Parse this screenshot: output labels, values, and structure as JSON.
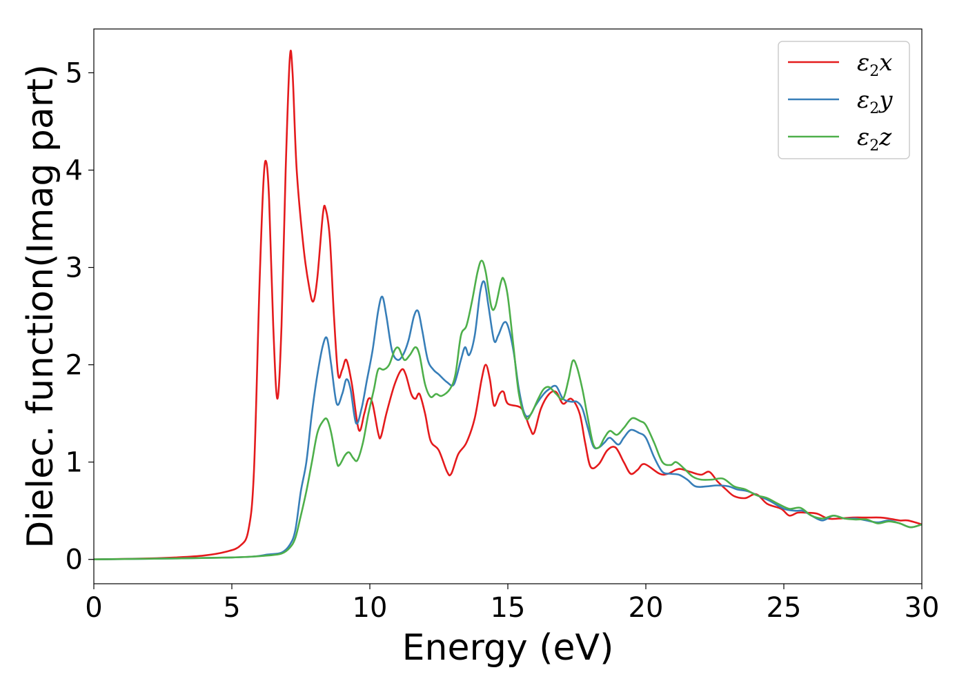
{
  "chart_data": {
    "type": "line",
    "xlabel": "Energy (eV)",
    "ylabel": "Dielec. function(Imag part)",
    "xlim": [
      0,
      30
    ],
    "ylim": [
      -0.25,
      5.45
    ],
    "xticks": [
      0,
      5,
      10,
      15,
      20,
      25,
      30
    ],
    "yticks": [
      0,
      1,
      2,
      3,
      4,
      5
    ],
    "grid": false,
    "legend_position": "top-right",
    "series": [
      {
        "name": "ε2x",
        "base": "ε",
        "sub": "2",
        "suffix": "x",
        "color": "#e41a1c",
        "points": [
          [
            0,
            0
          ],
          [
            2,
            0.01
          ],
          [
            3,
            0.02
          ],
          [
            4,
            0.04
          ],
          [
            4.8,
            0.08
          ],
          [
            5.3,
            0.14
          ],
          [
            5.6,
            0.3
          ],
          [
            5.8,
            0.9
          ],
          [
            6.0,
            2.8
          ],
          [
            6.15,
            3.9
          ],
          [
            6.25,
            4.08
          ],
          [
            6.35,
            3.7
          ],
          [
            6.5,
            2.4
          ],
          [
            6.65,
            1.65
          ],
          [
            6.8,
            2.4
          ],
          [
            6.95,
            4.0
          ],
          [
            7.1,
            5.15
          ],
          [
            7.2,
            5.0
          ],
          [
            7.35,
            4.0
          ],
          [
            7.6,
            3.2
          ],
          [
            7.8,
            2.8
          ],
          [
            7.95,
            2.65
          ],
          [
            8.1,
            2.9
          ],
          [
            8.3,
            3.55
          ],
          [
            8.4,
            3.6
          ],
          [
            8.55,
            3.3
          ],
          [
            8.7,
            2.5
          ],
          [
            8.85,
            1.9
          ],
          [
            9.0,
            1.95
          ],
          [
            9.15,
            2.05
          ],
          [
            9.35,
            1.8
          ],
          [
            9.6,
            1.33
          ],
          [
            9.8,
            1.5
          ],
          [
            9.95,
            1.65
          ],
          [
            10.1,
            1.6
          ],
          [
            10.3,
            1.3
          ],
          [
            10.4,
            1.26
          ],
          [
            10.6,
            1.5
          ],
          [
            10.9,
            1.8
          ],
          [
            11.15,
            1.95
          ],
          [
            11.3,
            1.9
          ],
          [
            11.5,
            1.7
          ],
          [
            11.65,
            1.65
          ],
          [
            11.8,
            1.7
          ],
          [
            12.0,
            1.5
          ],
          [
            12.2,
            1.22
          ],
          [
            12.5,
            1.12
          ],
          [
            12.8,
            0.9
          ],
          [
            12.95,
            0.88
          ],
          [
            13.2,
            1.08
          ],
          [
            13.5,
            1.2
          ],
          [
            13.8,
            1.45
          ],
          [
            14.05,
            1.85
          ],
          [
            14.2,
            2.0
          ],
          [
            14.35,
            1.85
          ],
          [
            14.5,
            1.58
          ],
          [
            14.7,
            1.7
          ],
          [
            14.85,
            1.72
          ],
          [
            15.0,
            1.6
          ],
          [
            15.5,
            1.55
          ],
          [
            15.8,
            1.35
          ],
          [
            15.95,
            1.3
          ],
          [
            16.2,
            1.55
          ],
          [
            16.5,
            1.7
          ],
          [
            16.75,
            1.72
          ],
          [
            17.0,
            1.6
          ],
          [
            17.3,
            1.65
          ],
          [
            17.6,
            1.5
          ],
          [
            17.8,
            1.2
          ],
          [
            18.0,
            0.95
          ],
          [
            18.3,
            0.98
          ],
          [
            18.6,
            1.12
          ],
          [
            18.9,
            1.15
          ],
          [
            19.2,
            1.0
          ],
          [
            19.45,
            0.88
          ],
          [
            19.7,
            0.92
          ],
          [
            19.95,
            0.98
          ],
          [
            20.5,
            0.88
          ],
          [
            20.8,
            0.88
          ],
          [
            21.2,
            0.93
          ],
          [
            21.6,
            0.9
          ],
          [
            22.0,
            0.87
          ],
          [
            22.3,
            0.9
          ],
          [
            22.6,
            0.8
          ],
          [
            22.9,
            0.72
          ],
          [
            23.2,
            0.65
          ],
          [
            23.6,
            0.63
          ],
          [
            24.0,
            0.67
          ],
          [
            24.4,
            0.57
          ],
          [
            24.9,
            0.52
          ],
          [
            25.2,
            0.45
          ],
          [
            25.5,
            0.48
          ],
          [
            25.8,
            0.48
          ],
          [
            26.2,
            0.47
          ],
          [
            26.6,
            0.42
          ],
          [
            27.0,
            0.42
          ],
          [
            27.5,
            0.43
          ],
          [
            28.0,
            0.43
          ],
          [
            28.5,
            0.43
          ],
          [
            28.8,
            0.42
          ],
          [
            29.2,
            0.4
          ],
          [
            29.5,
            0.4
          ],
          [
            30,
            0.36
          ]
        ]
      },
      {
        "name": "ε2y",
        "base": "ε",
        "sub": "2",
        "suffix": "y",
        "color": "#377eb8",
        "points": [
          [
            0,
            0
          ],
          [
            3,
            0.01
          ],
          [
            5,
            0.02
          ],
          [
            5.8,
            0.03
          ],
          [
            6.3,
            0.05
          ],
          [
            6.8,
            0.07
          ],
          [
            7.1,
            0.15
          ],
          [
            7.3,
            0.3
          ],
          [
            7.5,
            0.7
          ],
          [
            7.7,
            1.0
          ],
          [
            7.9,
            1.5
          ],
          [
            8.1,
            1.9
          ],
          [
            8.3,
            2.2
          ],
          [
            8.45,
            2.27
          ],
          [
            8.6,
            2.0
          ],
          [
            8.8,
            1.6
          ],
          [
            9.0,
            1.7
          ],
          [
            9.15,
            1.85
          ],
          [
            9.3,
            1.75
          ],
          [
            9.5,
            1.4
          ],
          [
            9.7,
            1.55
          ],
          [
            9.9,
            1.85
          ],
          [
            10.1,
            2.15
          ],
          [
            10.3,
            2.55
          ],
          [
            10.45,
            2.7
          ],
          [
            10.6,
            2.5
          ],
          [
            10.8,
            2.15
          ],
          [
            11.0,
            2.05
          ],
          [
            11.2,
            2.1
          ],
          [
            11.4,
            2.25
          ],
          [
            11.6,
            2.5
          ],
          [
            11.75,
            2.55
          ],
          [
            11.9,
            2.35
          ],
          [
            12.1,
            2.05
          ],
          [
            12.3,
            1.95
          ],
          [
            12.5,
            1.9
          ],
          [
            12.8,
            1.82
          ],
          [
            13.05,
            1.8
          ],
          [
            13.3,
            2.05
          ],
          [
            13.45,
            2.18
          ],
          [
            13.6,
            2.1
          ],
          [
            13.8,
            2.3
          ],
          [
            14.0,
            2.75
          ],
          [
            14.15,
            2.85
          ],
          [
            14.3,
            2.6
          ],
          [
            14.5,
            2.25
          ],
          [
            14.65,
            2.3
          ],
          [
            14.85,
            2.43
          ],
          [
            15.0,
            2.4
          ],
          [
            15.2,
            2.15
          ],
          [
            15.4,
            1.75
          ],
          [
            15.6,
            1.5
          ],
          [
            15.8,
            1.48
          ],
          [
            16.0,
            1.58
          ],
          [
            16.3,
            1.7
          ],
          [
            16.5,
            1.75
          ],
          [
            16.75,
            1.78
          ],
          [
            17.0,
            1.65
          ],
          [
            17.3,
            1.62
          ],
          [
            17.5,
            1.62
          ],
          [
            17.7,
            1.55
          ],
          [
            17.9,
            1.35
          ],
          [
            18.1,
            1.16
          ],
          [
            18.3,
            1.15
          ],
          [
            18.5,
            1.2
          ],
          [
            18.7,
            1.25
          ],
          [
            19.0,
            1.18
          ],
          [
            19.2,
            1.25
          ],
          [
            19.45,
            1.33
          ],
          [
            19.75,
            1.3
          ],
          [
            20.0,
            1.25
          ],
          [
            20.3,
            1.05
          ],
          [
            20.6,
            0.9
          ],
          [
            20.9,
            0.88
          ],
          [
            21.2,
            0.87
          ],
          [
            21.5,
            0.82
          ],
          [
            21.8,
            0.75
          ],
          [
            22.2,
            0.75
          ],
          [
            22.6,
            0.76
          ],
          [
            23.0,
            0.75
          ],
          [
            23.3,
            0.72
          ],
          [
            23.7,
            0.7
          ],
          [
            24.1,
            0.65
          ],
          [
            24.5,
            0.6
          ],
          [
            25.0,
            0.52
          ],
          [
            25.4,
            0.5
          ],
          [
            25.7,
            0.5
          ],
          [
            26.0,
            0.45
          ],
          [
            26.4,
            0.4
          ],
          [
            26.8,
            0.45
          ],
          [
            27.2,
            0.42
          ],
          [
            27.6,
            0.42
          ],
          [
            28.0,
            0.4
          ],
          [
            28.4,
            0.38
          ],
          [
            28.8,
            0.4
          ],
          [
            29.2,
            0.37
          ],
          [
            29.6,
            0.33
          ],
          [
            30,
            0.36
          ]
        ]
      },
      {
        "name": "ε2z",
        "base": "ε",
        "sub": "2",
        "suffix": "z",
        "color": "#4daf4a",
        "points": [
          [
            0,
            0
          ],
          [
            3,
            0.01
          ],
          [
            5,
            0.02
          ],
          [
            5.8,
            0.03
          ],
          [
            6.3,
            0.04
          ],
          [
            6.8,
            0.06
          ],
          [
            7.1,
            0.12
          ],
          [
            7.3,
            0.22
          ],
          [
            7.5,
            0.45
          ],
          [
            7.7,
            0.7
          ],
          [
            7.9,
            1.0
          ],
          [
            8.1,
            1.3
          ],
          [
            8.3,
            1.42
          ],
          [
            8.45,
            1.44
          ],
          [
            8.6,
            1.3
          ],
          [
            8.8,
            1.0
          ],
          [
            8.9,
            0.97
          ],
          [
            9.1,
            1.07
          ],
          [
            9.25,
            1.1
          ],
          [
            9.4,
            1.04
          ],
          [
            9.55,
            1.02
          ],
          [
            9.75,
            1.2
          ],
          [
            9.95,
            1.5
          ],
          [
            10.15,
            1.75
          ],
          [
            10.3,
            1.95
          ],
          [
            10.5,
            1.95
          ],
          [
            10.7,
            2.0
          ],
          [
            10.9,
            2.15
          ],
          [
            11.05,
            2.17
          ],
          [
            11.25,
            2.05
          ],
          [
            11.45,
            2.1
          ],
          [
            11.65,
            2.18
          ],
          [
            11.8,
            2.1
          ],
          [
            12.0,
            1.8
          ],
          [
            12.2,
            1.67
          ],
          [
            12.4,
            1.7
          ],
          [
            12.6,
            1.68
          ],
          [
            12.9,
            1.75
          ],
          [
            13.1,
            1.9
          ],
          [
            13.3,
            2.3
          ],
          [
            13.5,
            2.4
          ],
          [
            13.7,
            2.65
          ],
          [
            13.9,
            2.95
          ],
          [
            14.05,
            3.07
          ],
          [
            14.2,
            2.95
          ],
          [
            14.4,
            2.6
          ],
          [
            14.55,
            2.6
          ],
          [
            14.75,
            2.85
          ],
          [
            14.85,
            2.88
          ],
          [
            15.0,
            2.7
          ],
          [
            15.2,
            2.2
          ],
          [
            15.4,
            1.7
          ],
          [
            15.65,
            1.45
          ],
          [
            15.85,
            1.5
          ],
          [
            16.1,
            1.65
          ],
          [
            16.3,
            1.75
          ],
          [
            16.5,
            1.77
          ],
          [
            16.75,
            1.7
          ],
          [
            17.0,
            1.65
          ],
          [
            17.2,
            1.85
          ],
          [
            17.35,
            2.04
          ],
          [
            17.5,
            1.98
          ],
          [
            17.7,
            1.75
          ],
          [
            17.9,
            1.45
          ],
          [
            18.1,
            1.18
          ],
          [
            18.3,
            1.15
          ],
          [
            18.5,
            1.25
          ],
          [
            18.7,
            1.32
          ],
          [
            18.95,
            1.28
          ],
          [
            19.2,
            1.35
          ],
          [
            19.5,
            1.45
          ],
          [
            19.8,
            1.42
          ],
          [
            20.0,
            1.38
          ],
          [
            20.3,
            1.2
          ],
          [
            20.6,
            1.0
          ],
          [
            20.9,
            0.97
          ],
          [
            21.1,
            1.0
          ],
          [
            21.4,
            0.93
          ],
          [
            21.7,
            0.85
          ],
          [
            22.0,
            0.82
          ],
          [
            22.4,
            0.82
          ],
          [
            22.8,
            0.83
          ],
          [
            23.2,
            0.75
          ],
          [
            23.6,
            0.72
          ],
          [
            24.0,
            0.66
          ],
          [
            24.4,
            0.63
          ],
          [
            24.8,
            0.57
          ],
          [
            25.2,
            0.52
          ],
          [
            25.6,
            0.53
          ],
          [
            26.0,
            0.45
          ],
          [
            26.4,
            0.42
          ],
          [
            26.8,
            0.45
          ],
          [
            27.2,
            0.42
          ],
          [
            27.6,
            0.41
          ],
          [
            28.0,
            0.41
          ],
          [
            28.4,
            0.37
          ],
          [
            28.8,
            0.39
          ],
          [
            29.2,
            0.37
          ],
          [
            29.6,
            0.33
          ],
          [
            30,
            0.36
          ]
        ]
      }
    ]
  }
}
